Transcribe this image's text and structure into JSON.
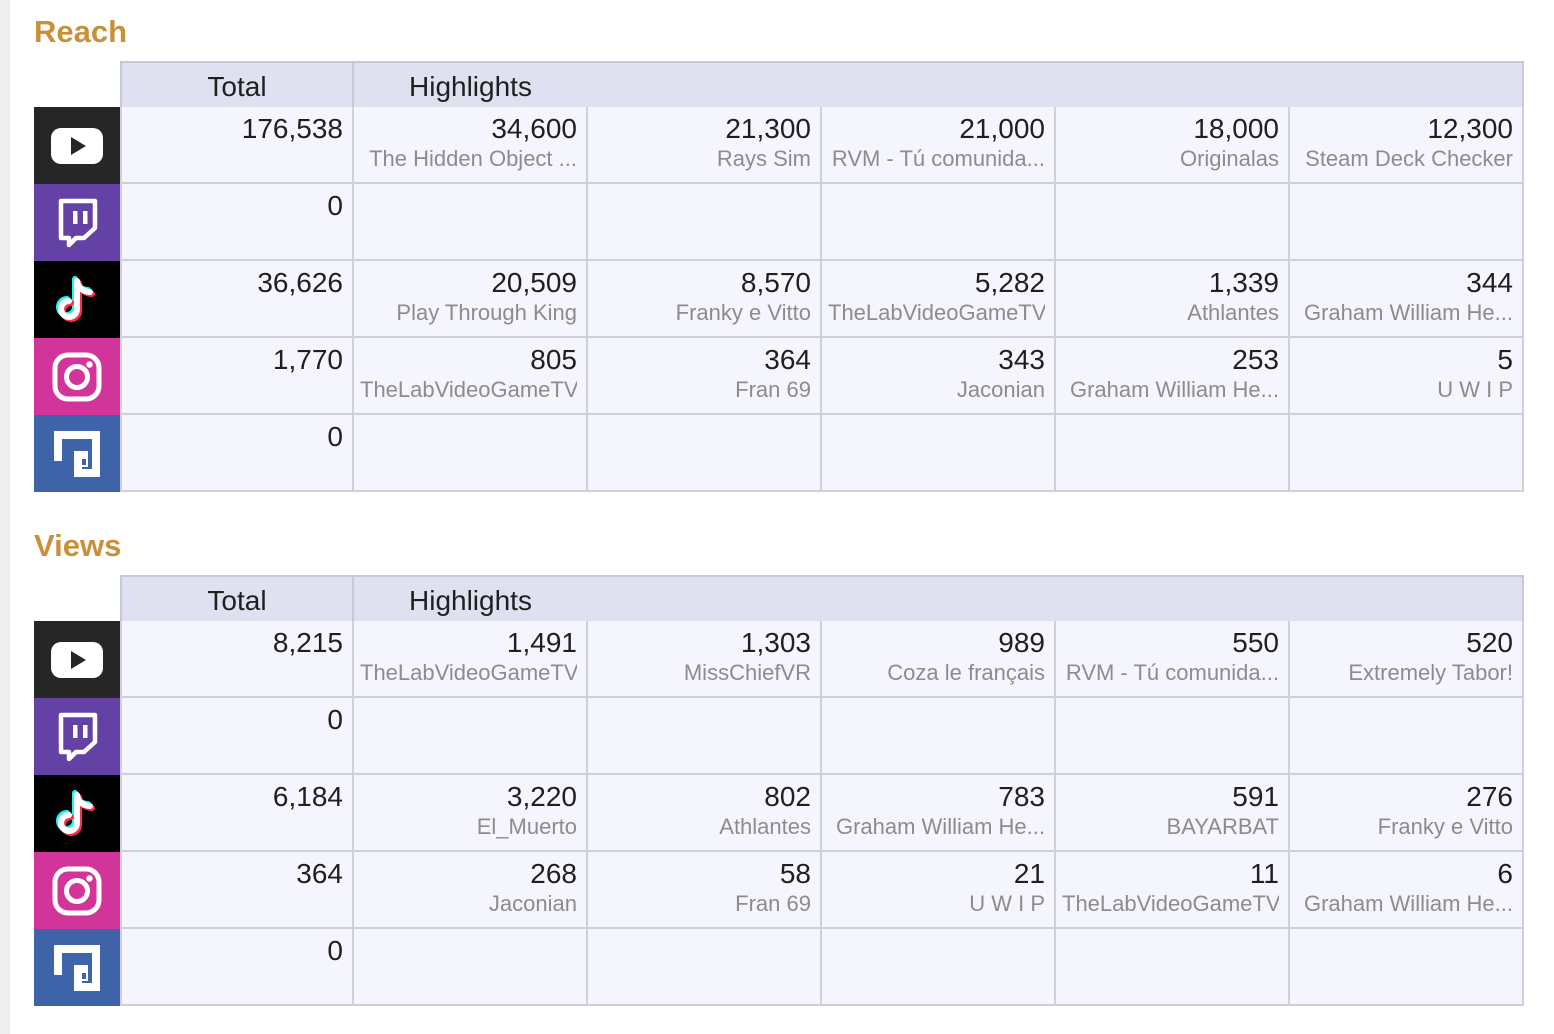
{
  "colors": {
    "section_title": "#c9903a",
    "header_bg": "#dfe0f0",
    "cell_bg": "#f5f6fd",
    "youtube": "#262626",
    "twitch": "#6441a5",
    "tiktok": "#000000",
    "instagram": "#d1359a",
    "gameface": "#3e63a8"
  },
  "icons": {
    "youtube": "youtube-icon",
    "twitch": "twitch-icon",
    "tiktok": "tiktok-icon",
    "instagram": "instagram-icon",
    "gameface": "gameface-icon"
  },
  "reach": {
    "title": "Reach",
    "header_total": "Total",
    "header_highlights": "Highlights",
    "rows": [
      {
        "platform": "youtube",
        "total": "176,538",
        "highlights": [
          {
            "value": "34,600",
            "label": "The Hidden Object ..."
          },
          {
            "value": "21,300",
            "label": "Rays Sim"
          },
          {
            "value": "21,000",
            "label": "RVM - Tú comunida..."
          },
          {
            "value": "18,000",
            "label": "Originalas"
          },
          {
            "value": "12,300",
            "label": "Steam Deck Checker"
          }
        ]
      },
      {
        "platform": "twitch",
        "total": "0",
        "highlights": []
      },
      {
        "platform": "tiktok",
        "total": "36,626",
        "highlights": [
          {
            "value": "20,509",
            "label": "Play Through King"
          },
          {
            "value": "8,570",
            "label": "Franky e Vitto"
          },
          {
            "value": "5,282",
            "label": "TheLabVideoGameTV"
          },
          {
            "value": "1,339",
            "label": "Athlantes"
          },
          {
            "value": "344",
            "label": "Graham William He..."
          }
        ]
      },
      {
        "platform": "instagram",
        "total": "1,770",
        "highlights": [
          {
            "value": "805",
            "label": "TheLabVideoGameTV"
          },
          {
            "value": "364",
            "label": "Fran 69"
          },
          {
            "value": "343",
            "label": "Jaconian"
          },
          {
            "value": "253",
            "label": "Graham William He..."
          },
          {
            "value": "5",
            "label": "U W I P"
          }
        ]
      },
      {
        "platform": "gameface",
        "total": "0",
        "highlights": []
      }
    ]
  },
  "views": {
    "title": "Views",
    "header_total": "Total",
    "header_highlights": "Highlights",
    "rows": [
      {
        "platform": "youtube",
        "total": "8,215",
        "highlights": [
          {
            "value": "1,491",
            "label": "TheLabVideoGameTV"
          },
          {
            "value": "1,303",
            "label": "MissChiefVR"
          },
          {
            "value": "989",
            "label": "Coza le français"
          },
          {
            "value": "550",
            "label": "RVM - Tú comunida..."
          },
          {
            "value": "520",
            "label": "Extremely Tabor!"
          }
        ]
      },
      {
        "platform": "twitch",
        "total": "0",
        "highlights": []
      },
      {
        "platform": "tiktok",
        "total": "6,184",
        "highlights": [
          {
            "value": "3,220",
            "label": "El_Muerto"
          },
          {
            "value": "802",
            "label": "Athlantes"
          },
          {
            "value": "783",
            "label": "Graham William He..."
          },
          {
            "value": "591",
            "label": "BAYARBAT"
          },
          {
            "value": "276",
            "label": "Franky e Vitto"
          }
        ]
      },
      {
        "platform": "instagram",
        "total": "364",
        "highlights": [
          {
            "value": "268",
            "label": "Jaconian"
          },
          {
            "value": "58",
            "label": "Fran 69"
          },
          {
            "value": "21",
            "label": "U W I P"
          },
          {
            "value": "11",
            "label": "TheLabVideoGameTV"
          },
          {
            "value": "6",
            "label": "Graham William He..."
          }
        ]
      },
      {
        "platform": "gameface",
        "total": "0",
        "highlights": []
      }
    ]
  }
}
